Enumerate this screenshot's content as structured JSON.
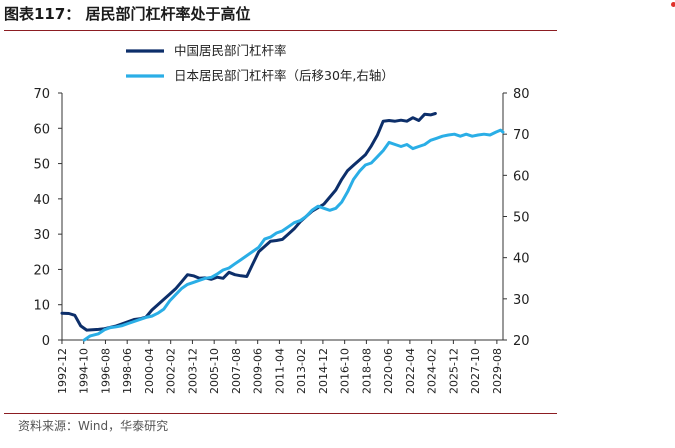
{
  "header": {
    "title": "图表117：  居民部门杠杆率处于高位"
  },
  "footer": {
    "source": "资料来源：Wind，华泰研究"
  },
  "colors": {
    "china": "#0d2f6a",
    "japan": "#2aaee6",
    "rule": "#8c1d22",
    "dot": "#e0302a"
  },
  "chart_data": {
    "type": "line",
    "title": "",
    "legend_placement": "top-left",
    "grid": false,
    "x_ticks": [
      "1992-12",
      "1994-10",
      "1996-08",
      "1998-06",
      "2000-04",
      "2002-02",
      "2003-12",
      "2005-10",
      "2007-08",
      "2009-06",
      "2011-04",
      "2013-02",
      "2014-12",
      "2016-10",
      "2018-08",
      "2020-06",
      "2022-04",
      "2024-02",
      "2025-12",
      "2027-10",
      "2029-08"
    ],
    "x_range": [
      1992.92,
      2030.1
    ],
    "y_left": {
      "range": [
        0,
        70
      ],
      "ticks": [
        0,
        10,
        20,
        30,
        40,
        50,
        60,
        70
      ]
    },
    "y_right": {
      "range": [
        20,
        80
      ],
      "ticks": [
        20,
        30,
        40,
        50,
        60,
        70,
        80
      ]
    },
    "series": [
      {
        "name": "中国居民部门杠杆率",
        "axis": "left",
        "x": [
          1992.92,
          1993.5,
          1994.0,
          1994.5,
          1995.0,
          1995.5,
          1996.0,
          1996.5,
          1997.0,
          1997.5,
          1998.0,
          1998.5,
          1999.0,
          1999.5,
          2000.0,
          2000.5,
          2001.0,
          2001.5,
          2002.0,
          2002.5,
          2003.0,
          2003.5,
          2004.0,
          2004.5,
          2005.0,
          2005.5,
          2006.0,
          2006.5,
          2007.0,
          2007.5,
          2008.0,
          2008.5,
          2009.0,
          2009.5,
          2010.0,
          2010.5,
          2011.0,
          2011.5,
          2012.0,
          2012.5,
          2013.0,
          2013.5,
          2014.0,
          2014.5,
          2015.0,
          2015.5,
          2016.0,
          2016.5,
          2017.0,
          2017.5,
          2018.0,
          2018.5,
          2019.0,
          2019.5,
          2020.0,
          2020.5,
          2021.0,
          2021.5,
          2022.0,
          2022.5,
          2023.0,
          2023.5,
          2024.0,
          2024.4
        ],
        "values": [
          7.6,
          7.5,
          7.0,
          4.0,
          2.8,
          2.9,
          3.0,
          3.2,
          3.6,
          4.0,
          4.6,
          5.2,
          5.8,
          6.0,
          6.5,
          8.5,
          10.0,
          11.5,
          13.0,
          14.5,
          16.5,
          18.5,
          18.2,
          17.5,
          17.6,
          17.2,
          17.8,
          17.5,
          19.2,
          18.5,
          18.2,
          18.0,
          21.5,
          25.0,
          26.5,
          28.0,
          28.2,
          28.5,
          30.0,
          31.5,
          33.5,
          35.0,
          36.5,
          37.5,
          38.5,
          40.5,
          42.5,
          45.5,
          48.0,
          49.5,
          51.0,
          52.5,
          55.0,
          58.0,
          62.0,
          62.2,
          62.0,
          62.3,
          62.0,
          63.0,
          62.2,
          64.0,
          63.8,
          64.2
        ]
      },
      {
        "name": "日本居民部门杠杆率（后移30年,右轴）",
        "axis": "right",
        "x": [
          1994.8,
          1995.3,
          1996.0,
          1996.5,
          1997.0,
          1997.5,
          1998.0,
          1998.5,
          1999.0,
          1999.5,
          2000.0,
          2000.5,
          2001.0,
          2001.5,
          2002.0,
          2002.5,
          2003.0,
          2003.5,
          2004.0,
          2004.5,
          2005.0,
          2005.5,
          2006.0,
          2006.5,
          2007.0,
          2007.5,
          2008.0,
          2008.5,
          2009.0,
          2009.5,
          2010.0,
          2010.5,
          2011.0,
          2011.5,
          2012.0,
          2012.5,
          2013.0,
          2013.5,
          2014.0,
          2014.5,
          2015.0,
          2015.5,
          2016.0,
          2016.5,
          2017.0,
          2017.5,
          2018.0,
          2018.5,
          2019.0,
          2019.5,
          2020.0,
          2020.5,
          2021.0,
          2021.5,
          2022.0,
          2022.5,
          2023.0,
          2023.5,
          2024.0,
          2024.5,
          2025.0,
          2025.5,
          2026.0,
          2026.5,
          2027.0,
          2027.5,
          2028.0,
          2028.5,
          2029.0,
          2029.5,
          2029.9,
          2030.1
        ],
        "values": [
          20.0,
          21.0,
          21.5,
          22.5,
          23.0,
          23.2,
          23.5,
          24.0,
          24.5,
          25.0,
          25.5,
          25.8,
          26.5,
          27.5,
          29.5,
          31.0,
          32.5,
          33.5,
          34.0,
          34.5,
          35.0,
          35.2,
          36.0,
          37.0,
          37.5,
          38.5,
          39.5,
          40.5,
          41.5,
          42.5,
          44.5,
          45.0,
          46.0,
          46.5,
          47.5,
          48.5,
          49.0,
          50.0,
          51.5,
          52.5,
          52.0,
          51.5,
          52.0,
          53.5,
          56.0,
          59.0,
          61.0,
          62.5,
          63.0,
          64.5,
          66.0,
          68.0,
          67.5,
          67.0,
          67.5,
          66.5,
          67.0,
          67.5,
          68.5,
          69.0,
          69.5,
          69.8,
          70.0,
          69.5,
          70.0,
          69.5,
          69.8,
          70.0,
          69.8,
          70.5,
          71.0,
          70.5
        ]
      }
    ]
  }
}
